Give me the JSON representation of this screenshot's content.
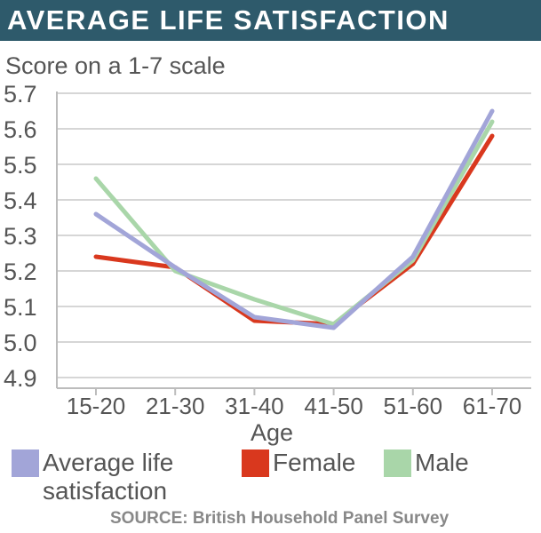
{
  "header": {
    "title": "AVERAGE LIFE SATISFACTION"
  },
  "chart_data": {
    "type": "line",
    "title": "AVERAGE LIFE SATISFACTION",
    "subtitle": "Score on a 1-7 scale",
    "xlabel": "Age",
    "ylabel": "",
    "categories": [
      "15-20",
      "21-30",
      "31-40",
      "41-50",
      "51-60",
      "61-70"
    ],
    "ylim": [
      4.9,
      5.7
    ],
    "yticks": [
      "5.7",
      "5.6",
      "5.5",
      "5.4",
      "5.3",
      "5.2",
      "5.1",
      "5.0",
      "4.9"
    ],
    "grid": true,
    "legend_position": "bottom",
    "series": [
      {
        "name": "Average life satisfaction",
        "color": "#a2a5d8",
        "values": [
          5.36,
          5.21,
          5.07,
          5.04,
          5.24,
          5.65
        ]
      },
      {
        "name": "Female",
        "color": "#d9381e",
        "values": [
          5.24,
          5.21,
          5.06,
          5.05,
          5.22,
          5.58
        ]
      },
      {
        "name": "Male",
        "color": "#a9d6a9",
        "values": [
          5.46,
          5.2,
          5.12,
          5.05,
          5.23,
          5.62
        ]
      }
    ]
  },
  "legend": {
    "avg_line1": "Average life",
    "avg_line2": "satisfaction",
    "female": "Female",
    "male": "Male"
  },
  "source": "SOURCE: British Household Panel Survey"
}
